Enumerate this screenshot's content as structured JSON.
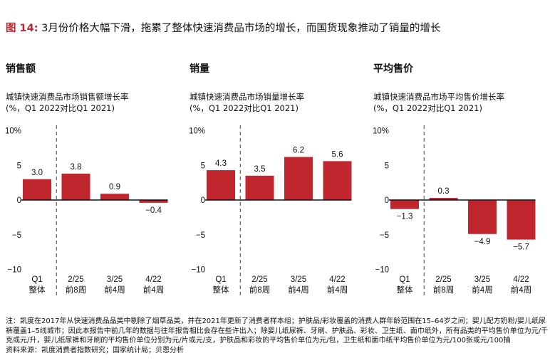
{
  "title": {
    "figure_label": "图 14:",
    "text": "3月份价格大幅下滑，拖累了整体快速消费品市场的增长，而国货现象推动了销量的增长"
  },
  "colors": {
    "accent": "#c0262e",
    "bar": "#c0262e"
  },
  "chart_data": [
    {
      "type": "bar",
      "title": "销售额",
      "subtitle": [
        "城镇快速消费品市场销售额增长率",
        "(%，Q1 2022对比Q1 2021)"
      ],
      "categories": [
        [
          "Q1",
          "整体"
        ],
        [
          "2/25",
          "前8周"
        ],
        [
          "3/25",
          "前4周"
        ],
        [
          "4/22",
          "前4周"
        ]
      ],
      "values": [
        3.0,
        3.8,
        0.9,
        -0.4
      ],
      "value_labels": [
        "3.0",
        "3.8",
        "0.9",
        "−0.4"
      ],
      "ylim": [
        -10,
        10
      ],
      "yticks": [
        "10%",
        "5",
        "0",
        "−5",
        "−10"
      ],
      "grid": false,
      "divider_after": 0
    },
    {
      "type": "bar",
      "title": "销量",
      "subtitle": [
        "城镇快速消费品市场销量增长率",
        "(%，Q1 2022对比Q1 2021)"
      ],
      "categories": [
        [
          "Q1",
          "整体"
        ],
        [
          "2/25",
          "前8周"
        ],
        [
          "3/25",
          "前4周"
        ],
        [
          "4/22",
          "前4周"
        ]
      ],
      "values": [
        4.3,
        3.5,
        6.2,
        5.6
      ],
      "value_labels": [
        "4.3",
        "3.5",
        "6.2",
        "5.6"
      ],
      "ylim": [
        -10,
        10
      ],
      "yticks": [
        "10%",
        "5",
        "0",
        "−5",
        "−10"
      ],
      "grid": false,
      "divider_after": 0
    },
    {
      "type": "bar",
      "title": "平均售价",
      "subtitle": [
        "城镇快速消费品市场平均售价增长率",
        "(%，Q1 2022对比Q1 2021)"
      ],
      "categories": [
        [
          "Q1",
          "整体"
        ],
        [
          "2/25",
          "前8周"
        ],
        [
          "3/25",
          "前4周"
        ],
        [
          "4/22",
          "前4周"
        ]
      ],
      "values": [
        -1.3,
        0.3,
        -4.9,
        -5.7
      ],
      "value_labels": [
        "−1.3",
        "0.3",
        "−4.9",
        "−5.7"
      ],
      "ylim": [
        -10,
        10
      ],
      "yticks": [
        "10%",
        "5",
        "0",
        "−5",
        "−10"
      ],
      "grid": false,
      "divider_after": 0
    }
  ],
  "notes": {
    "note": "注：凯度在2017年从快速消费品品类中剔除了烟草品类，并在2021年更新了消费者样本组；护肤品/彩妆覆盖的消费人群年龄范围在15–64岁之间；婴儿配方奶粉/婴儿纸尿裤覆盖1–5线城市；因此本报告中前几年的数据与往年报告相比会存在些许出入；除婴儿纸尿裤、牙刷、护肤品、彩妆、卫生纸、面巾纸外，所有品类的平均售价单位为元/千克或元/升，婴儿纸尿裤和牙刷的平均售价单位分别为元/片或元/支，护肤品和彩妆的平均售价单位为元/包，卫生纸和面巾纸平均售价单位为元/100张或元/100抽",
    "source": "资料来源：凯度消费者指数研究；国家统计局；贝恩分析"
  }
}
